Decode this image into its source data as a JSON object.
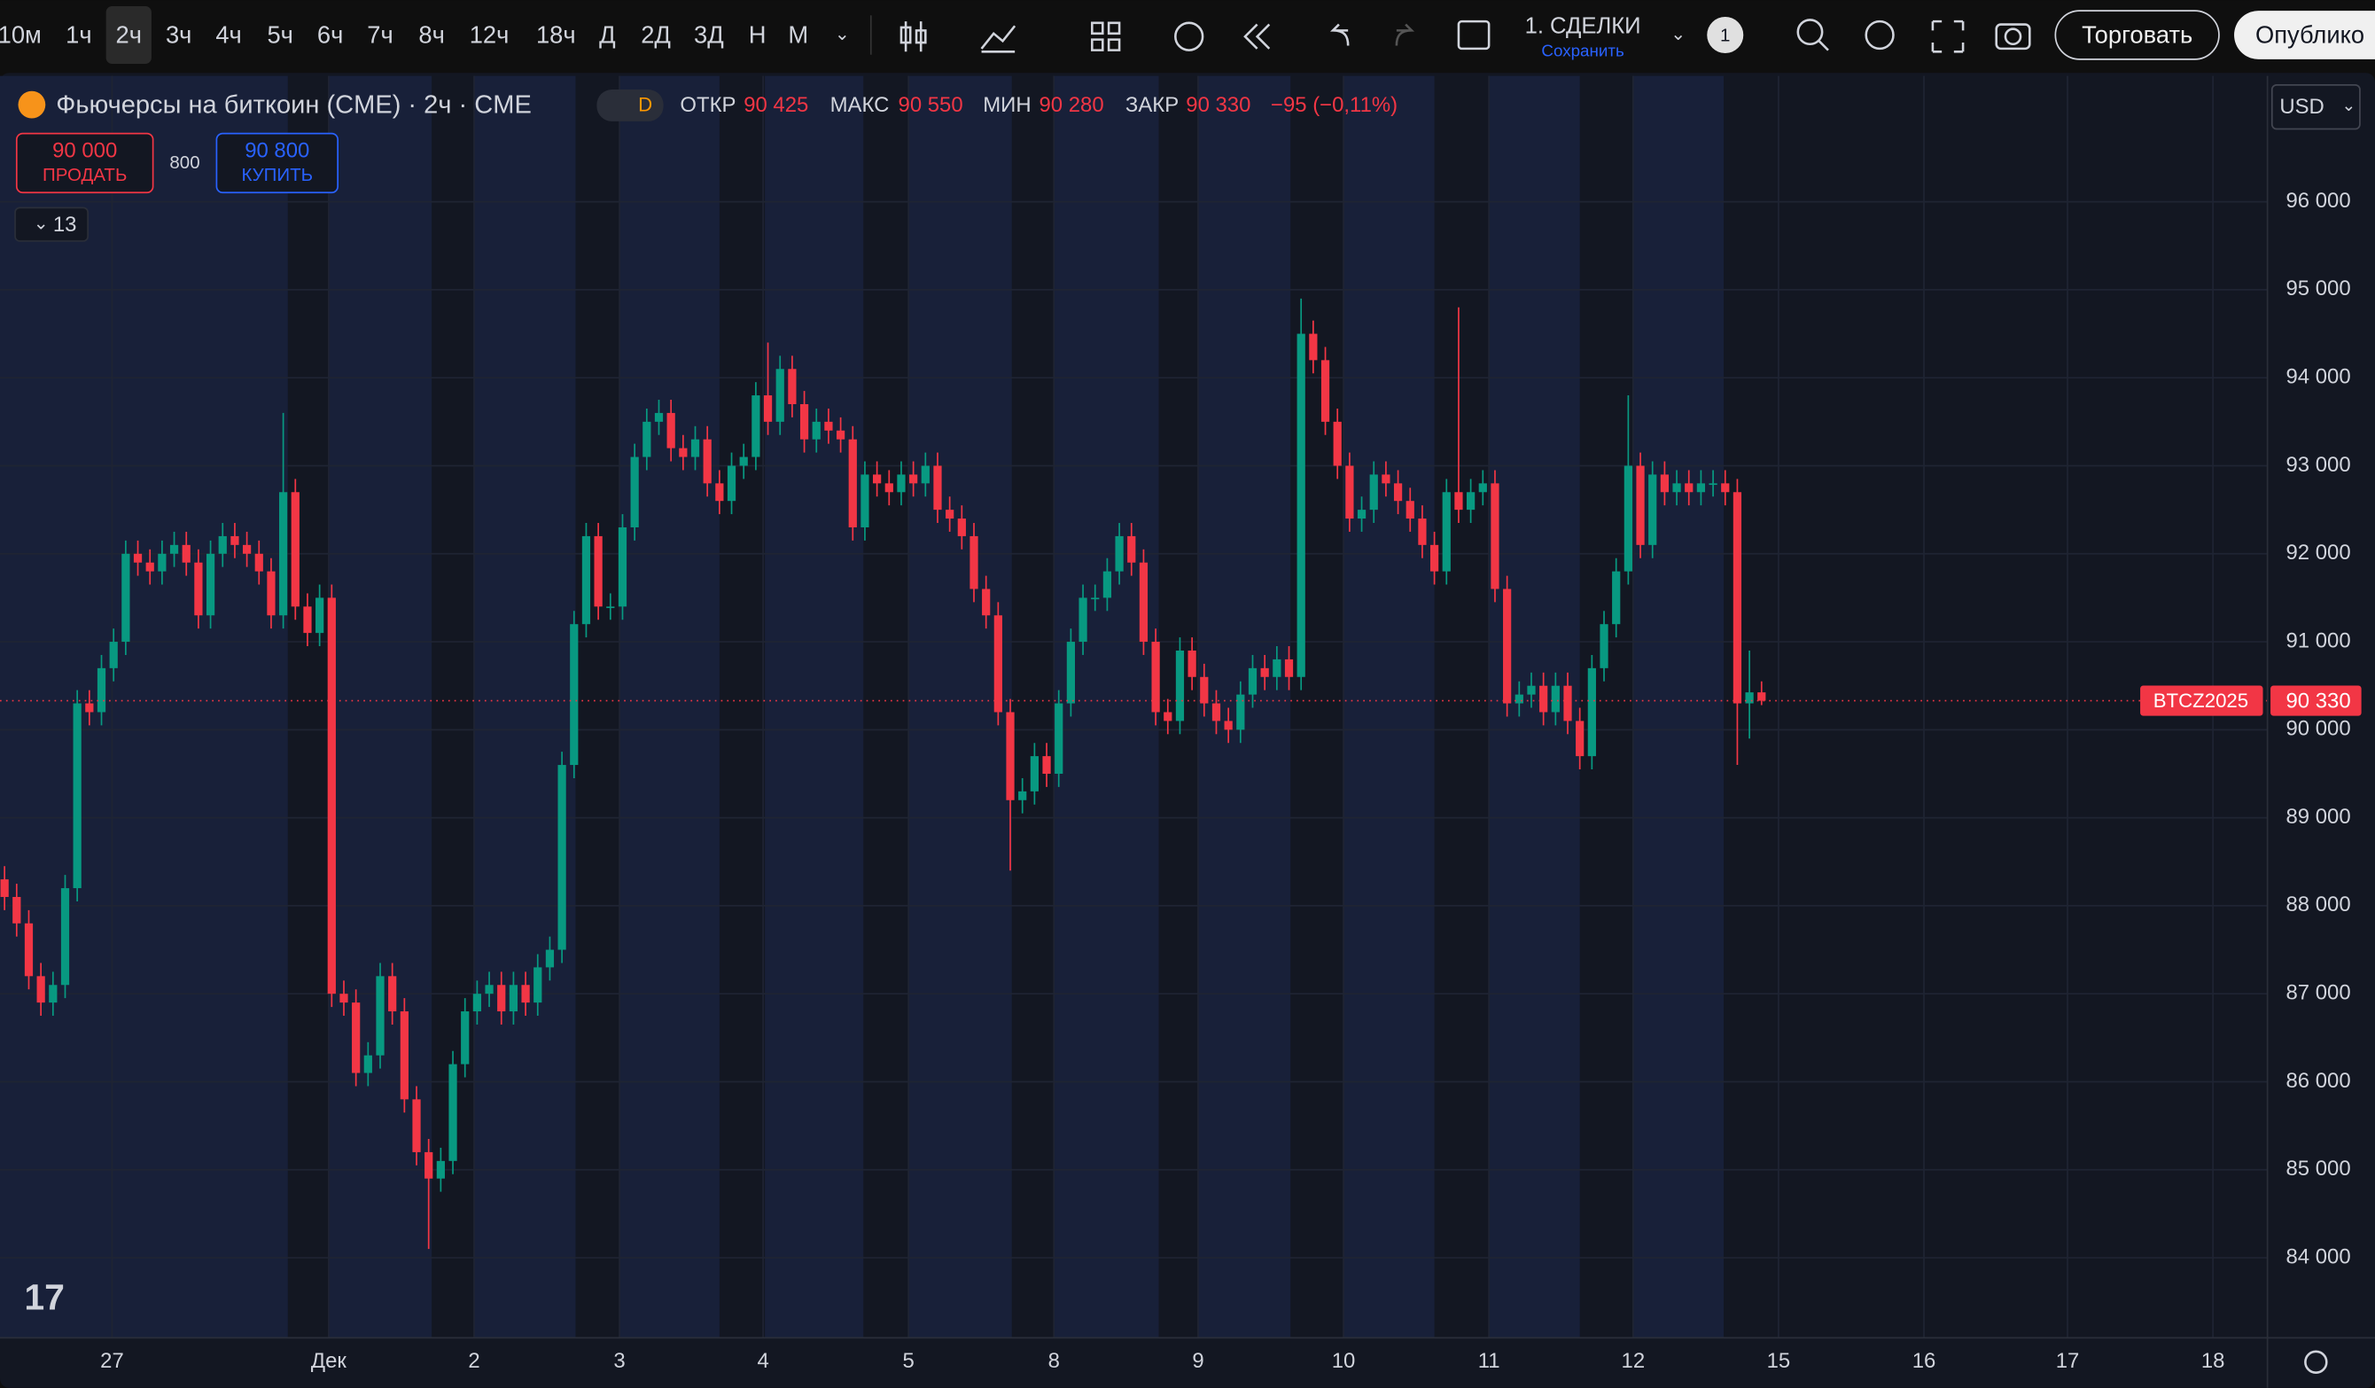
{
  "toolbar": {
    "timeframes": [
      "10м",
      "1ч",
      "2ч",
      "3ч",
      "4ч",
      "5ч",
      "6ч",
      "7ч",
      "8ч",
      "12ч",
      "18ч",
      "Д",
      "2Д",
      "3Д",
      "Н",
      "М"
    ],
    "layout_name": "1. СДЕЛКИ",
    "save": "Сохранить",
    "badge": "1",
    "trade": "Торговать",
    "publish": "Опублико"
  },
  "legend": {
    "symbol": "Фьючерсы на биткоин (CME) · 2ч · CME",
    "badge": "D",
    "open_label": "ОТКР",
    "open": "90 425",
    "high_label": "МАКС",
    "high": "90 550",
    "low_label": "МИН",
    "low": "90 280",
    "close_label": "ЗАКР",
    "close": "90 330",
    "change": "−95 (−0,11%)"
  },
  "trade_panel": {
    "sell_price": "90 000",
    "sell": "ПРОДАТЬ",
    "spread": "800",
    "buy_price": "90 800",
    "buy": "КУПИТЬ",
    "indicators": "13"
  },
  "currency": "USD",
  "price_tag": {
    "symbol": "BTCZ2025",
    "price": "90 330"
  },
  "chart_data": {
    "type": "candlestick",
    "up_color": "#089981",
    "down_color": "#f23645",
    "grid": true,
    "open": [
      88300,
      88100,
      87800,
      87200,
      86900,
      87100,
      88200,
      90300,
      90200,
      90700,
      91000,
      92000,
      91900,
      91800,
      92000,
      92100,
      91900,
      91300,
      92000,
      92200,
      92100,
      92000,
      91800,
      91300,
      92700,
      91400,
      91100,
      91500,
      87000,
      86900,
      86100,
      86300,
      87200,
      86800,
      85800,
      85200,
      84900,
      85100,
      86200,
      86800,
      87000,
      87100,
      86800,
      87100,
      86900,
      87300,
      87500,
      89600,
      91200,
      92200,
      91400,
      91400,
      92300,
      93100,
      93500,
      93600,
      93200,
      93100,
      93300,
      92800,
      92600,
      93000,
      93100,
      93800,
      93500,
      94100,
      93700,
      93300,
      93500,
      93400,
      93300,
      92300,
      92900,
      92800,
      92700,
      92900,
      92800,
      93000,
      92500,
      92400,
      92200,
      91600,
      91300,
      90200,
      89200,
      89300,
      89700,
      89500,
      90300,
      91000,
      91500,
      91500,
      91800,
      92200,
      91900,
      91000,
      90200,
      90100,
      90900,
      90600,
      90300,
      90100,
      90000,
      90400,
      90700,
      90600,
      90800,
      90600,
      94500,
      94200,
      93500,
      93000,
      92400,
      92500,
      92900,
      92800,
      92600,
      92400,
      92100,
      91800,
      92700,
      92500,
      92700,
      92800,
      91600,
      90300,
      90400,
      90500,
      90200,
      90500,
      90100,
      89700,
      90700,
      91200,
      91800,
      93000,
      92100,
      92900,
      92700,
      92800,
      92700,
      92800,
      92800,
      92700,
      90300,
      90425
    ],
    "high": [
      88450,
      88250,
      87950,
      87350,
      87250,
      88350,
      90450,
      90450,
      90850,
      91150,
      92150,
      92150,
      92050,
      92150,
      92250,
      92250,
      92050,
      92150,
      92350,
      92350,
      92250,
      92150,
      91950,
      93600,
      92850,
      91550,
      91650,
      91650,
      87150,
      87050,
      86450,
      87350,
      87350,
      86950,
      85950,
      85350,
      85250,
      86350,
      86950,
      87150,
      87250,
      87250,
      87250,
      87250,
      87450,
      87650,
      89750,
      91350,
      92350,
      92350,
      91550,
      92450,
      93250,
      93650,
      93750,
      93750,
      93350,
      93450,
      93450,
      92950,
      93150,
      93250,
      93950,
      94400,
      94250,
      94250,
      93850,
      93650,
      93650,
      93550,
      93450,
      93050,
      93050,
      92950,
      93050,
      93050,
      93150,
      93150,
      92650,
      92550,
      92350,
      91750,
      91450,
      90350,
      89450,
      89850,
      89850,
      90450,
      91150,
      91650,
      91650,
      91950,
      92350,
      92350,
      92050,
      91150,
      90350,
      91050,
      91050,
      90750,
      90450,
      90250,
      90550,
      90850,
      90850,
      90950,
      90950,
      94900,
      94650,
      94350,
      93650,
      93150,
      92650,
      93050,
      93050,
      92950,
      92750,
      92550,
      92250,
      92850,
      94800,
      92850,
      92950,
      92950,
      91750,
      90550,
      90650,
      90650,
      90650,
      90650,
      90250,
      90850,
      91350,
      91950,
      93800,
      93150,
      93050,
      93050,
      92950,
      92950,
      92950,
      92950,
      92950,
      92850,
      90900,
      90550
    ],
    "low": [
      87950,
      87650,
      87050,
      86750,
      86750,
      86950,
      88050,
      90050,
      90050,
      90550,
      90850,
      91750,
      91650,
      91650,
      91850,
      91750,
      91150,
      91150,
      91850,
      91950,
      91850,
      91650,
      91150,
      91150,
      91250,
      90950,
      90950,
      86850,
      86750,
      85950,
      85950,
      86150,
      86650,
      85650,
      85050,
      84100,
      84750,
      84950,
      86050,
      86650,
      86850,
      86650,
      86650,
      86750,
      86750,
      87150,
      87350,
      89450,
      91050,
      91250,
      91250,
      91250,
      92150,
      92950,
      93350,
      93050,
      92950,
      92950,
      92650,
      92450,
      92450,
      92850,
      92950,
      93350,
      93350,
      93550,
      93150,
      93150,
      93250,
      93150,
      92150,
      92150,
      92650,
      92550,
      92550,
      92650,
      92650,
      92350,
      92250,
      92050,
      91450,
      91150,
      90050,
      88400,
      89050,
      89150,
      89350,
      89350,
      90150,
      90850,
      91350,
      91350,
      91650,
      91750,
      90850,
      90050,
      89950,
      89950,
      90450,
      90150,
      89950,
      89850,
      89850,
      90250,
      90450,
      90450,
      90450,
      90450,
      94050,
      93350,
      92850,
      92250,
      92250,
      92350,
      92650,
      92450,
      92250,
      91950,
      91650,
      91650,
      92350,
      92350,
      92550,
      91450,
      90150,
      90150,
      90250,
      90050,
      90050,
      89950,
      89550,
      89550,
      90550,
      91050,
      91650,
      91950,
      91950,
      92550,
      92550,
      92550,
      92550,
      92650,
      92550,
      89600,
      89900,
      90280
    ],
    "close": [
      88100,
      87800,
      87200,
      86900,
      87100,
      88200,
      90300,
      90200,
      90700,
      91000,
      92000,
      91900,
      91800,
      92000,
      92100,
      91900,
      91300,
      92000,
      92200,
      92100,
      92000,
      91800,
      91300,
      92700,
      91400,
      91100,
      91500,
      87000,
      86900,
      86100,
      86300,
      87200,
      86800,
      85800,
      85200,
      84900,
      85100,
      86200,
      86800,
      87000,
      87100,
      86800,
      87100,
      86900,
      87300,
      87500,
      89600,
      91200,
      92200,
      91400,
      91400,
      92300,
      93100,
      93500,
      93600,
      93200,
      93100,
      93300,
      92800,
      92600,
      93000,
      93100,
      93800,
      93500,
      94100,
      93700,
      93300,
      93500,
      93400,
      93300,
      92300,
      92900,
      92800,
      92700,
      92900,
      92800,
      93000,
      92500,
      92400,
      92200,
      91600,
      91300,
      90200,
      89200,
      89300,
      89700,
      89500,
      90300,
      91000,
      91500,
      91500,
      91800,
      92200,
      91900,
      91000,
      90200,
      90100,
      90900,
      90600,
      90300,
      90100,
      90000,
      90400,
      90700,
      90600,
      90800,
      90600,
      94500,
      94200,
      93500,
      93000,
      92400,
      92500,
      92900,
      92800,
      92600,
      92400,
      92100,
      91800,
      92700,
      92500,
      92700,
      92800,
      91600,
      90300,
      90400,
      90500,
      90200,
      90500,
      90100,
      89700,
      90700,
      91200,
      91800,
      93000,
      92100,
      92900,
      92700,
      92800,
      92700,
      92800,
      92800,
      92700,
      90300,
      90425,
      90330
    ],
    "xlim": [
      -0.375,
      186.75
    ],
    "xticks": [
      {
        "value": 8.875,
        "label": "27"
      },
      {
        "value": 26.75,
        "label": "Дек"
      },
      {
        "value": 38.75,
        "label": "2"
      },
      {
        "value": 50.75,
        "label": "3"
      },
      {
        "value": 62.6,
        "label": "4"
      },
      {
        "value": 74.6,
        "label": "5"
      },
      {
        "value": 86.6,
        "label": "8"
      },
      {
        "value": 98.5,
        "label": "9"
      },
      {
        "value": 110.5,
        "label": "10"
      },
      {
        "value": 122.5,
        "label": "11"
      },
      {
        "value": 134.4,
        "label": "12"
      },
      {
        "value": 146.4,
        "label": "15"
      },
      {
        "value": 158.4,
        "label": "16"
      },
      {
        "value": 170.25,
        "label": "17"
      },
      {
        "value": 182.25,
        "label": "18"
      }
    ],
    "ylim": [
      83090,
      97430
    ],
    "yticks": [
      {
        "value": 84000,
        "label": "84 000"
      },
      {
        "value": 85000,
        "label": "85 000"
      },
      {
        "value": 86000,
        "label": "86 000"
      },
      {
        "value": 87000,
        "label": "87 000"
      },
      {
        "value": 88000,
        "label": "88 000"
      },
      {
        "value": 89000,
        "label": "89 000"
      },
      {
        "value": 90000,
        "label": "90 000"
      },
      {
        "value": 91000,
        "label": "91 000"
      },
      {
        "value": 92000,
        "label": "92 000"
      },
      {
        "value": 93000,
        "label": "93 000"
      },
      {
        "value": 94000,
        "label": "94 000"
      },
      {
        "value": 95000,
        "label": "95 000"
      },
      {
        "value": 96000,
        "label": "96 000"
      }
    ]
  }
}
